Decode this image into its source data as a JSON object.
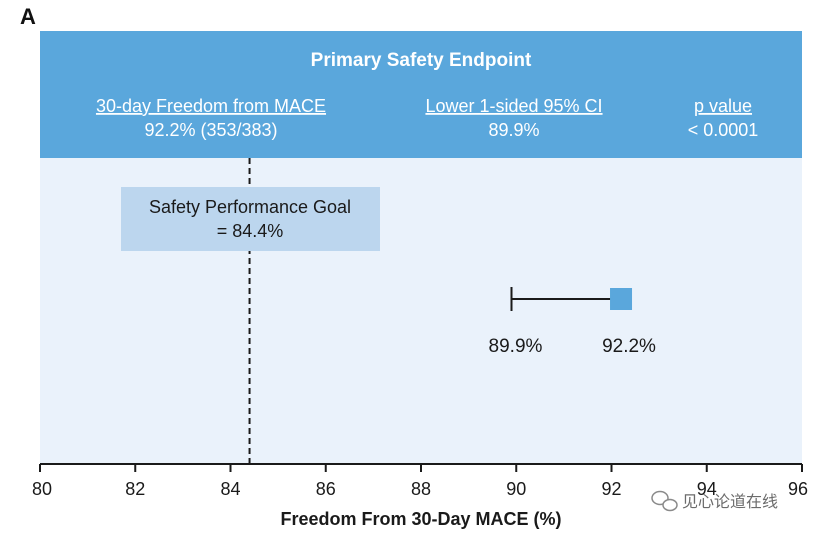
{
  "panel_label": "A",
  "header": {
    "title": "Primary Safety Endpoint",
    "columns": [
      {
        "label": "30-day Freedom from MACE",
        "value": "92.2% (353/383)"
      },
      {
        "label": "Lower 1-sided 95% CI",
        "value": "89.9%"
      },
      {
        "label": "p value",
        "value": "< 0.0001"
      }
    ]
  },
  "goal_box": {
    "line1": "Safety Performance Goal",
    "line2": "= 84.4%"
  },
  "watermark": {
    "text": "见心论道在线",
    "icon": "wechat-icon"
  },
  "colors": {
    "header_bg": "#5aa7dc",
    "plot_bg": "#eaf2fb",
    "goal_box_bg": "#bcd6ee",
    "marker": "#5aa7dc",
    "axis": "#1a1a1a"
  },
  "chart_data": {
    "type": "scatter",
    "xlabel": "Freedom From 30-Day MACE (%)",
    "xlim": [
      80,
      96
    ],
    "xticks": [
      80,
      82,
      84,
      86,
      88,
      90,
      92,
      94,
      96
    ],
    "tick_labels": [
      "80",
      "82",
      "84",
      "86",
      "88",
      "90",
      "92",
      "94",
      "96"
    ],
    "reference_line": {
      "x": 84.4,
      "label": "Safety Performance Goal = 84.4%",
      "style": "dashed"
    },
    "point_estimate": {
      "x": 92.2,
      "label": "92.2%"
    },
    "lower_ci": {
      "x": 89.9,
      "label": "89.9%"
    }
  }
}
